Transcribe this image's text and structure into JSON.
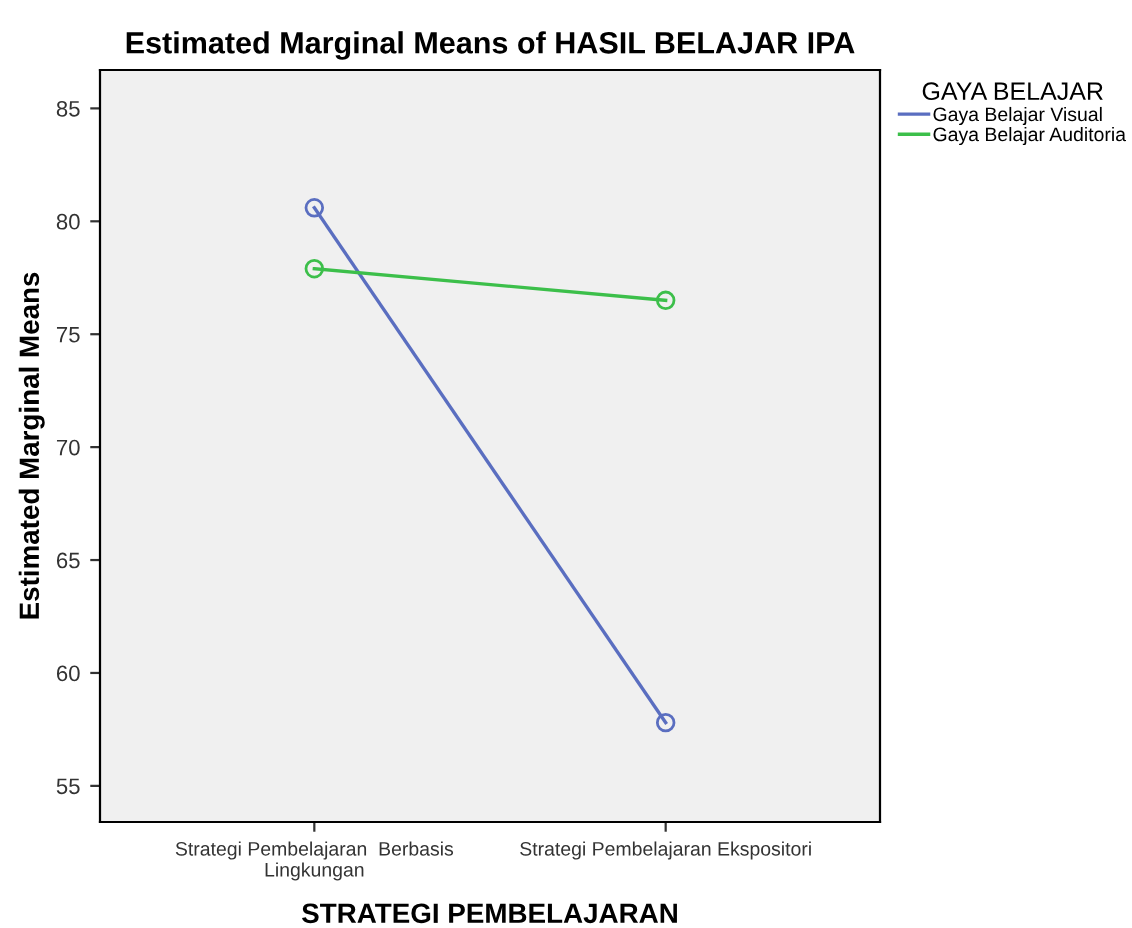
{
  "chart_data": {
    "type": "line",
    "title": "Estimated Marginal Means of HASIL BELAJAR IPA",
    "xlabel": "STRATEGI PEMBELAJARAN",
    "ylabel": "Estimated Marginal Means",
    "legend_title": "GAYA BELAJAR",
    "categories": [
      "Strategi Pembelajaran  Berbasis\nLingkungan",
      "Strategi Pembelajaran Ekspositori"
    ],
    "series": [
      {
        "name": "Gaya Belajar Visual",
        "color": "#5a6ec0",
        "values": [
          80.6,
          57.8
        ]
      },
      {
        "name": "Gaya Belajar Auditoria",
        "color": "#3cbf4a",
        "values": [
          77.9,
          76.5
        ]
      }
    ],
    "ylim": [
      53.4,
      86.7
    ],
    "yticks": [
      55,
      60,
      65,
      70,
      75,
      80,
      85
    ],
    "grid": false,
    "legend": "right",
    "marker": "circle",
    "line_style": "solid"
  }
}
